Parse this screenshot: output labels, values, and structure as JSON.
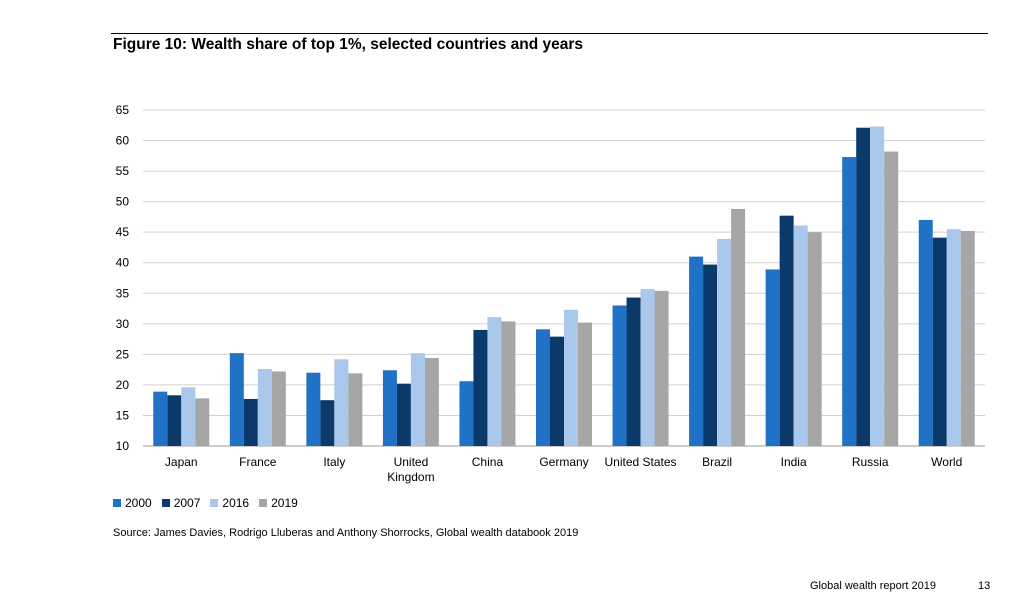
{
  "title": "Figure 10: Wealth share of top 1%, selected countries and years",
  "source": "Source: James Davies, Rodrigo Lluberas and Anthony Shorrocks, Global wealth databook 2019",
  "footer": {
    "text": "Global wealth report 2019",
    "page": "13"
  },
  "chart_data": {
    "type": "bar",
    "title": "Figure 10: Wealth share of top 1%, selected countries and years",
    "xlabel": "",
    "ylabel": "",
    "ylim": [
      10,
      65
    ],
    "yticks": [
      10,
      15,
      20,
      25,
      30,
      35,
      40,
      45,
      50,
      55,
      60,
      65
    ],
    "grid": true,
    "legend_position": "bottom-left",
    "categories": [
      "Japan",
      "France",
      "Italy",
      "United Kingdom",
      "China",
      "Germany",
      "United States",
      "Brazil",
      "India",
      "Russia",
      "World"
    ],
    "category_lines": [
      [
        "Japan"
      ],
      [
        "France"
      ],
      [
        "Italy"
      ],
      [
        "United",
        "Kingdom"
      ],
      [
        "China"
      ],
      [
        "Germany"
      ],
      [
        "United States"
      ],
      [
        "Brazil"
      ],
      [
        "India"
      ],
      [
        "Russia"
      ],
      [
        "World"
      ]
    ],
    "series": [
      {
        "name": "2000",
        "color": "#1f72c6",
        "values": [
          18.9,
          25.2,
          22.0,
          22.4,
          20.6,
          29.1,
          33.0,
          41.0,
          38.9,
          57.3,
          47.0
        ]
      },
      {
        "name": "2007",
        "color": "#0b3a6a",
        "values": [
          18.3,
          17.7,
          17.5,
          20.2,
          29.0,
          27.9,
          34.3,
          39.7,
          47.7,
          62.1,
          44.1
        ]
      },
      {
        "name": "2016",
        "color": "#a9c8ec",
        "values": [
          19.6,
          22.6,
          24.2,
          25.2,
          31.1,
          32.3,
          35.7,
          43.9,
          46.1,
          62.3,
          45.5
        ]
      },
      {
        "name": "2019",
        "color": "#a6a6a6",
        "values": [
          17.8,
          22.2,
          21.9,
          24.4,
          30.4,
          30.2,
          35.4,
          48.8,
          45.0,
          58.2,
          45.2
        ]
      }
    ]
  }
}
